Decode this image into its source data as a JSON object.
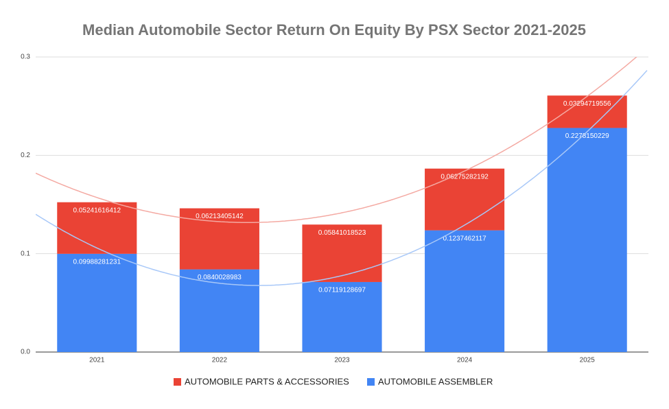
{
  "chart_data": {
    "type": "stacked-bar",
    "title": "Median Automobile Sector Return On Equity By PSX Sector 2021-2025",
    "categories": [
      "2021",
      "2022",
      "2023",
      "2024",
      "2025"
    ],
    "series": [
      {
        "name": "AUTOMOBILE ASSEMBLER",
        "color": "#4285f4",
        "trendline_color": "#a8c8f8",
        "values": [
          0.09988281231,
          0.0840028983,
          0.07119128697,
          0.1237462117,
          0.2278150229
        ]
      },
      {
        "name": "AUTOMOBILE PARTS & ACCESSORIES",
        "color": "#ea4335",
        "trendline_color": "#f4a9a2",
        "values": [
          0.05241616412,
          0.06213405142,
          0.05841018523,
          0.06275282192,
          0.03294719556
        ]
      }
    ],
    "ylim": [
      0,
      0.3
    ],
    "yticks": [
      {
        "value": 0,
        "label": "0.0"
      },
      0.1,
      0.2,
      0.3
    ],
    "grid": true,
    "trendline": "polynomial",
    "legend": "bottom"
  }
}
